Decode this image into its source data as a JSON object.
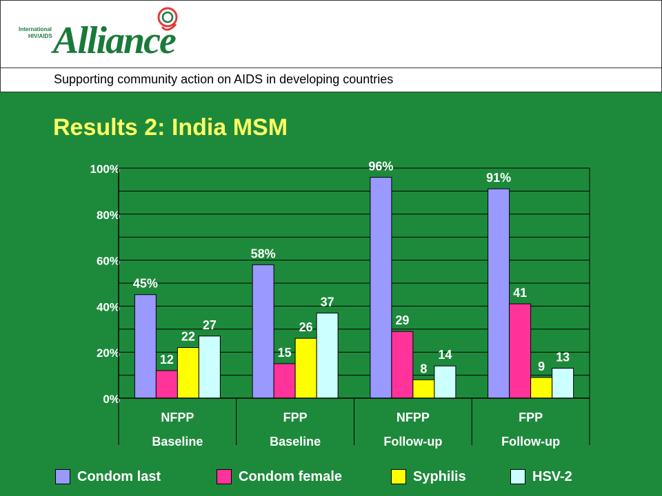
{
  "header": {
    "logo": {
      "small_text_1": "International",
      "small_text_2": "HIV/AIDS",
      "wordmark": "Alliance",
      "icon": "ribbon-swirl-icon"
    },
    "tagline": "Supporting community action on AIDS in developing countries"
  },
  "title": "Results 2: India MSM",
  "colors": {
    "background": "#1d8a3b",
    "title": "#ffff66",
    "series": [
      "#9999ff",
      "#ff3399",
      "#ffff00",
      "#ccffff"
    ]
  },
  "chart_data": {
    "type": "bar",
    "title": "",
    "ylim": [
      0,
      100
    ],
    "y_ticks": [
      "0%",
      "20%",
      "40%",
      "60%",
      "80%",
      "100%"
    ],
    "grid": true,
    "legend_position": "bottom",
    "categories": [
      {
        "line1": "NFPP",
        "line2": "Baseline"
      },
      {
        "line1": "FPP",
        "line2": "Baseline"
      },
      {
        "line1": "NFPP",
        "line2": "Follow-up"
      },
      {
        "line1": "FPP",
        "line2": "Follow-up"
      }
    ],
    "series": [
      {
        "name": "Condom last",
        "values": [
          45,
          58,
          96,
          91
        ],
        "labels": [
          "45%",
          "58%",
          "96%",
          "91%"
        ]
      },
      {
        "name": "Condom female",
        "values": [
          12,
          15,
          29,
          41
        ],
        "labels": [
          "12",
          "15",
          "29",
          "41"
        ]
      },
      {
        "name": "Syphilis",
        "values": [
          22,
          26,
          8,
          9
        ],
        "labels": [
          "22",
          "26",
          "8",
          "9"
        ]
      },
      {
        "name": "HSV-2",
        "values": [
          27,
          37,
          14,
          13
        ],
        "labels": [
          "27",
          "37",
          "14",
          "13"
        ]
      }
    ]
  }
}
